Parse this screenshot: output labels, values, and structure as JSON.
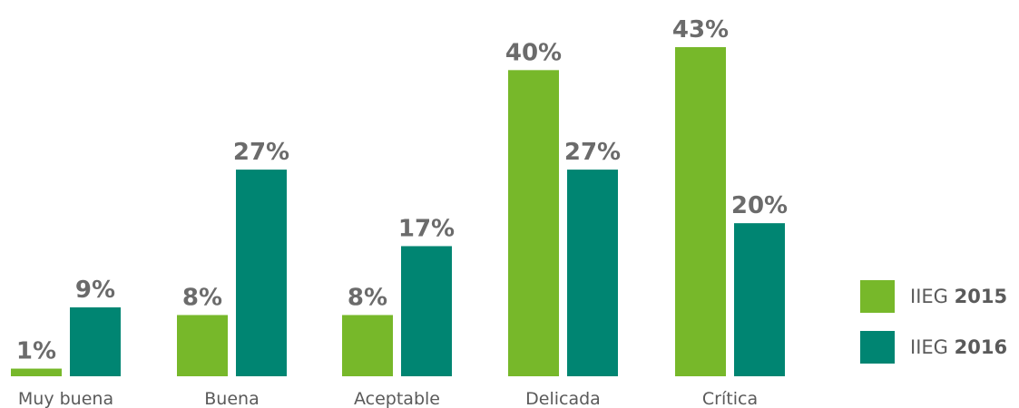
{
  "chart_data": {
    "type": "bar",
    "categories": [
      "Muy buena",
      "Buena",
      "Aceptable",
      "Delicada",
      "Crítica"
    ],
    "series": [
      {
        "name": "IIEG 2015",
        "color": "#77b82a",
        "values": [
          1,
          8,
          8,
          40,
          43
        ],
        "labels": [
          "1%",
          "8%",
          "8%",
          "40%",
          "43%"
        ]
      },
      {
        "name": "IIEG 2016",
        "color": "#008572",
        "values": [
          9,
          27,
          17,
          27,
          20
        ],
        "labels": [
          "9%",
          "27%",
          "17%",
          "27%",
          "20%"
        ]
      }
    ],
    "unit": "%",
    "title": "",
    "xlabel": "",
    "ylabel": "",
    "ylim": [
      0,
      45
    ],
    "grid": false,
    "legend_position": "right"
  },
  "legend": {
    "items": [
      {
        "prefix": "IIEG",
        "year": "2015",
        "color": "#77b82a"
      },
      {
        "prefix": "IIEG",
        "year": "2016",
        "color": "#008572"
      }
    ]
  }
}
